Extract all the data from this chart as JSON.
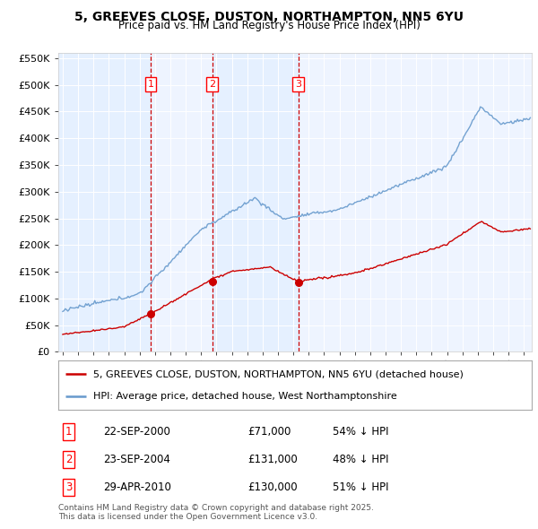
{
  "title1": "5, GREEVES CLOSE, DUSTON, NORTHAMPTON, NN5 6YU",
  "title2": "Price paid vs. HM Land Registry's House Price Index (HPI)",
  "legend_red": "5, GREEVES CLOSE, DUSTON, NORTHAMPTON, NN5 6YU (detached house)",
  "legend_blue": "HPI: Average price, detached house, West Northamptonshire",
  "footnote": "Contains HM Land Registry data © Crown copyright and database right 2025.\nThis data is licensed under the Open Government Licence v3.0.",
  "transactions": [
    {
      "num": 1,
      "date": "22-SEP-2000",
      "price": 71000,
      "pct": "54% ↓ HPI",
      "year": 2000.72
    },
    {
      "num": 2,
      "date": "23-SEP-2004",
      "price": 131000,
      "pct": "48% ↓ HPI",
      "year": 2004.72
    },
    {
      "num": 3,
      "date": "29-APR-2010",
      "price": 130000,
      "pct": "51% ↓ HPI",
      "year": 2010.32
    }
  ],
  "red_color": "#cc0000",
  "blue_color": "#6699cc",
  "blue_fill": "#ddeeff",
  "plot_bg": "#eef4ff",
  "grid_color": "#cccccc",
  "dashed_color": "#cc0000",
  "shade_color": "#ddeeff",
  "ylim": [
    0,
    560000
  ],
  "yticks": [
    0,
    50000,
    100000,
    150000,
    200000,
    250000,
    300000,
    350000,
    400000,
    450000,
    500000,
    550000
  ],
  "xlim_start": 1994.7,
  "xlim_end": 2025.5
}
